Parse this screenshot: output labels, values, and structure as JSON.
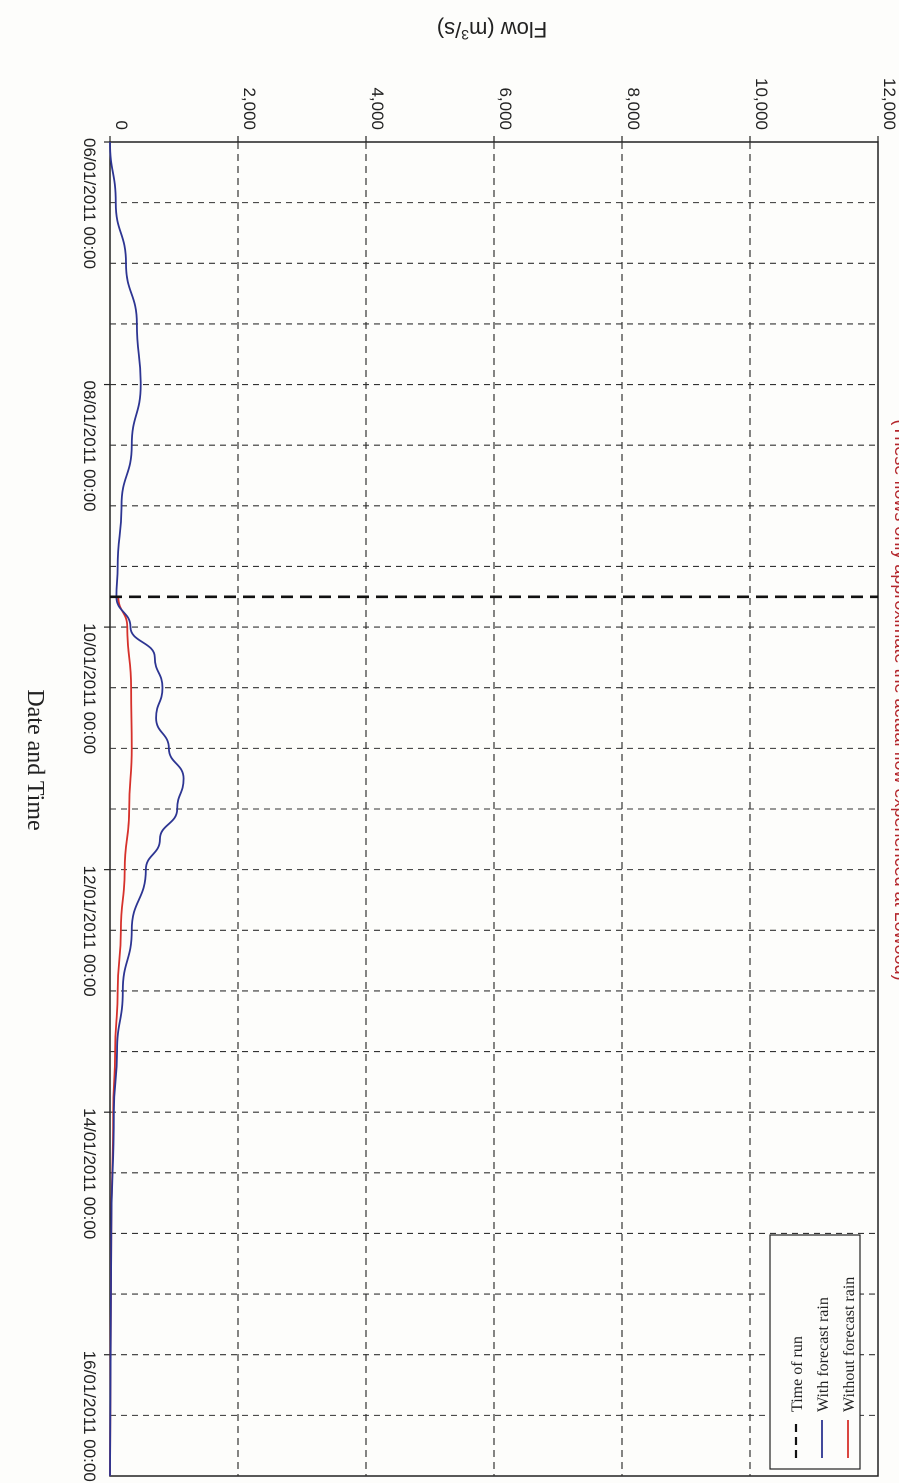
{
  "chart_data": {
    "type": "line",
    "subtitle": "(These flows only approximate the actual flow experienced at Lowood)",
    "ylabel": "Flow (m³/s)",
    "xlabel": "Date and Time",
    "ylim": [
      0,
      12000
    ],
    "xlim": [
      "06/01/2011 00:00",
      "17/01/2011 00:00"
    ],
    "y_ticks": [
      "0",
      "2,000",
      "4,000",
      "6,000",
      "8,000",
      "10,000",
      "12,000"
    ],
    "x_ticks": [
      "06/01/2011 00:00",
      "08/01/2011 00:00",
      "10/01/2011 00:00",
      "12/01/2011 00:00",
      "14/01/2011 00:00",
      "16/01/2011 00:00"
    ],
    "grid": true,
    "legend_position": "bottom-right",
    "series": [
      {
        "name": "Without forecast rain",
        "color": "#d6312b",
        "x": [
          "09/01/2011 18:00",
          "10/01/2011 00:00",
          "10/01/2011 12:00",
          "11/01/2011 00:00",
          "11/01/2011 12:00",
          "12/01/2011 00:00",
          "12/01/2011 12:00",
          "13/01/2011 00:00",
          "13/01/2011 12:00",
          "14/01/2011 00:00",
          "15/01/2011 00:00",
          "17/01/2011 00:00"
        ],
        "y": [
          130,
          270,
          330,
          340,
          300,
          230,
          170,
          120,
          80,
          50,
          20,
          0
        ]
      },
      {
        "name": "With forecast rain",
        "color": "#2d3592",
        "x": [
          "06/01/2011 00:00",
          "06/01/2011 12:00",
          "07/01/2011 00:00",
          "07/01/2011 12:00",
          "08/01/2011 00:00",
          "08/01/2011 12:00",
          "09/01/2011 00:00",
          "09/01/2011 12:00",
          "09/01/2011 18:00",
          "10/01/2011 00:00",
          "10/01/2011 06:00",
          "10/01/2011 12:00",
          "10/01/2011 18:00",
          "11/01/2011 00:00",
          "11/01/2011 06:00",
          "11/01/2011 12:00",
          "11/01/2011 18:00",
          "12/01/2011 00:00",
          "12/01/2011 12:00",
          "13/01/2011 00:00",
          "13/01/2011 12:00",
          "14/01/2011 00:00",
          "15/01/2011 00:00",
          "17/01/2011 00:00"
        ],
        "y": [
          0,
          90,
          250,
          420,
          480,
          340,
          180,
          120,
          100,
          320,
          700,
          820,
          720,
          920,
          1150,
          1050,
          780,
          560,
          340,
          200,
          110,
          60,
          20,
          0
        ]
      }
    ],
    "time_of_run": "09/01/2011 18:00",
    "legend": [
      {
        "label": "Without forecast rain",
        "style": "solid",
        "color": "#d6312b"
      },
      {
        "label": "With forecast rain",
        "style": "solid",
        "color": "#2d3592"
      },
      {
        "label": "Time of run",
        "style": "dashed",
        "color": "#111111"
      }
    ]
  }
}
